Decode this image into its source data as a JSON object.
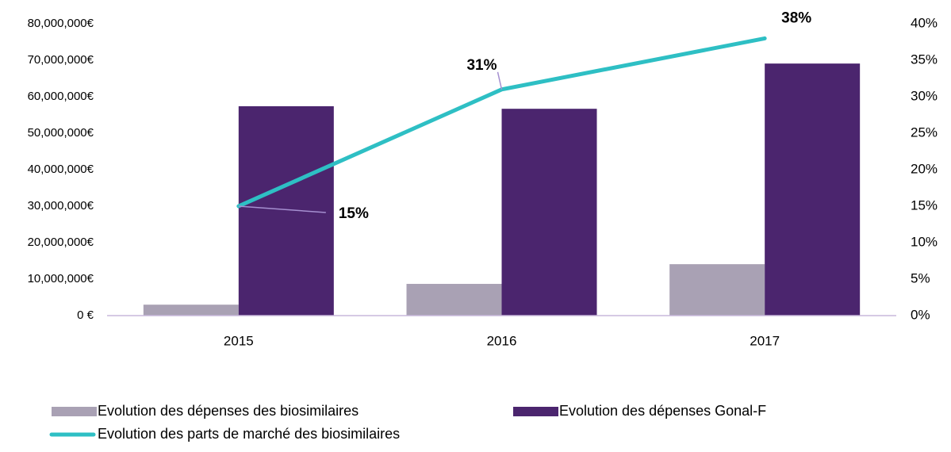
{
  "chart_data": {
    "type": "bar",
    "categories": [
      "2015",
      "2016",
      "2017"
    ],
    "series": [
      {
        "name": "Evolution des dépenses des biosimilaires",
        "color": "#a9a1b4",
        "type": "bar",
        "values": [
          3000000,
          8700000,
          14100000
        ]
      },
      {
        "name": "Evolution des dépenses Gonal-F",
        "color": "#4b256e",
        "type": "bar",
        "values": [
          57400000,
          56700000,
          69100000
        ]
      },
      {
        "name": "Evolution des parts de marché des biosimilaires",
        "color": "#2ebfc4",
        "type": "line",
        "axis": "y2",
        "values": [
          15,
          31,
          38
        ],
        "value_labels": [
          "15%",
          "31%",
          "38%"
        ]
      }
    ],
    "ylim": [
      0,
      80000000
    ],
    "yticks": [
      {
        "value": 0,
        "label": "0 €"
      },
      {
        "value": 10000000,
        "label": "10,000,000€"
      },
      {
        "value": 20000000,
        "label": "20,000,000€"
      },
      {
        "value": 30000000,
        "label": "30,000,000€"
      },
      {
        "value": 40000000,
        "label": "40,000,000€"
      },
      {
        "value": 50000000,
        "label": "50,000,000€"
      },
      {
        "value": 60000000,
        "label": "60,000,000€"
      },
      {
        "value": 70000000,
        "label": "70,000,000€"
      },
      {
        "value": 80000000,
        "label": "80,000,000€"
      }
    ],
    "y2lim": [
      0,
      40
    ],
    "y2ticks": [
      {
        "value": 0,
        "label": "0%"
      },
      {
        "value": 5,
        "label": "5%"
      },
      {
        "value": 10,
        "label": "10%"
      },
      {
        "value": 15,
        "label": "15%"
      },
      {
        "value": 20,
        "label": "20%"
      },
      {
        "value": 25,
        "label": "25%"
      },
      {
        "value": 30,
        "label": "30%"
      },
      {
        "value": 35,
        "label": "35%"
      },
      {
        "value": 40,
        "label": "40%"
      }
    ],
    "grid": false,
    "legend": "bottom"
  }
}
